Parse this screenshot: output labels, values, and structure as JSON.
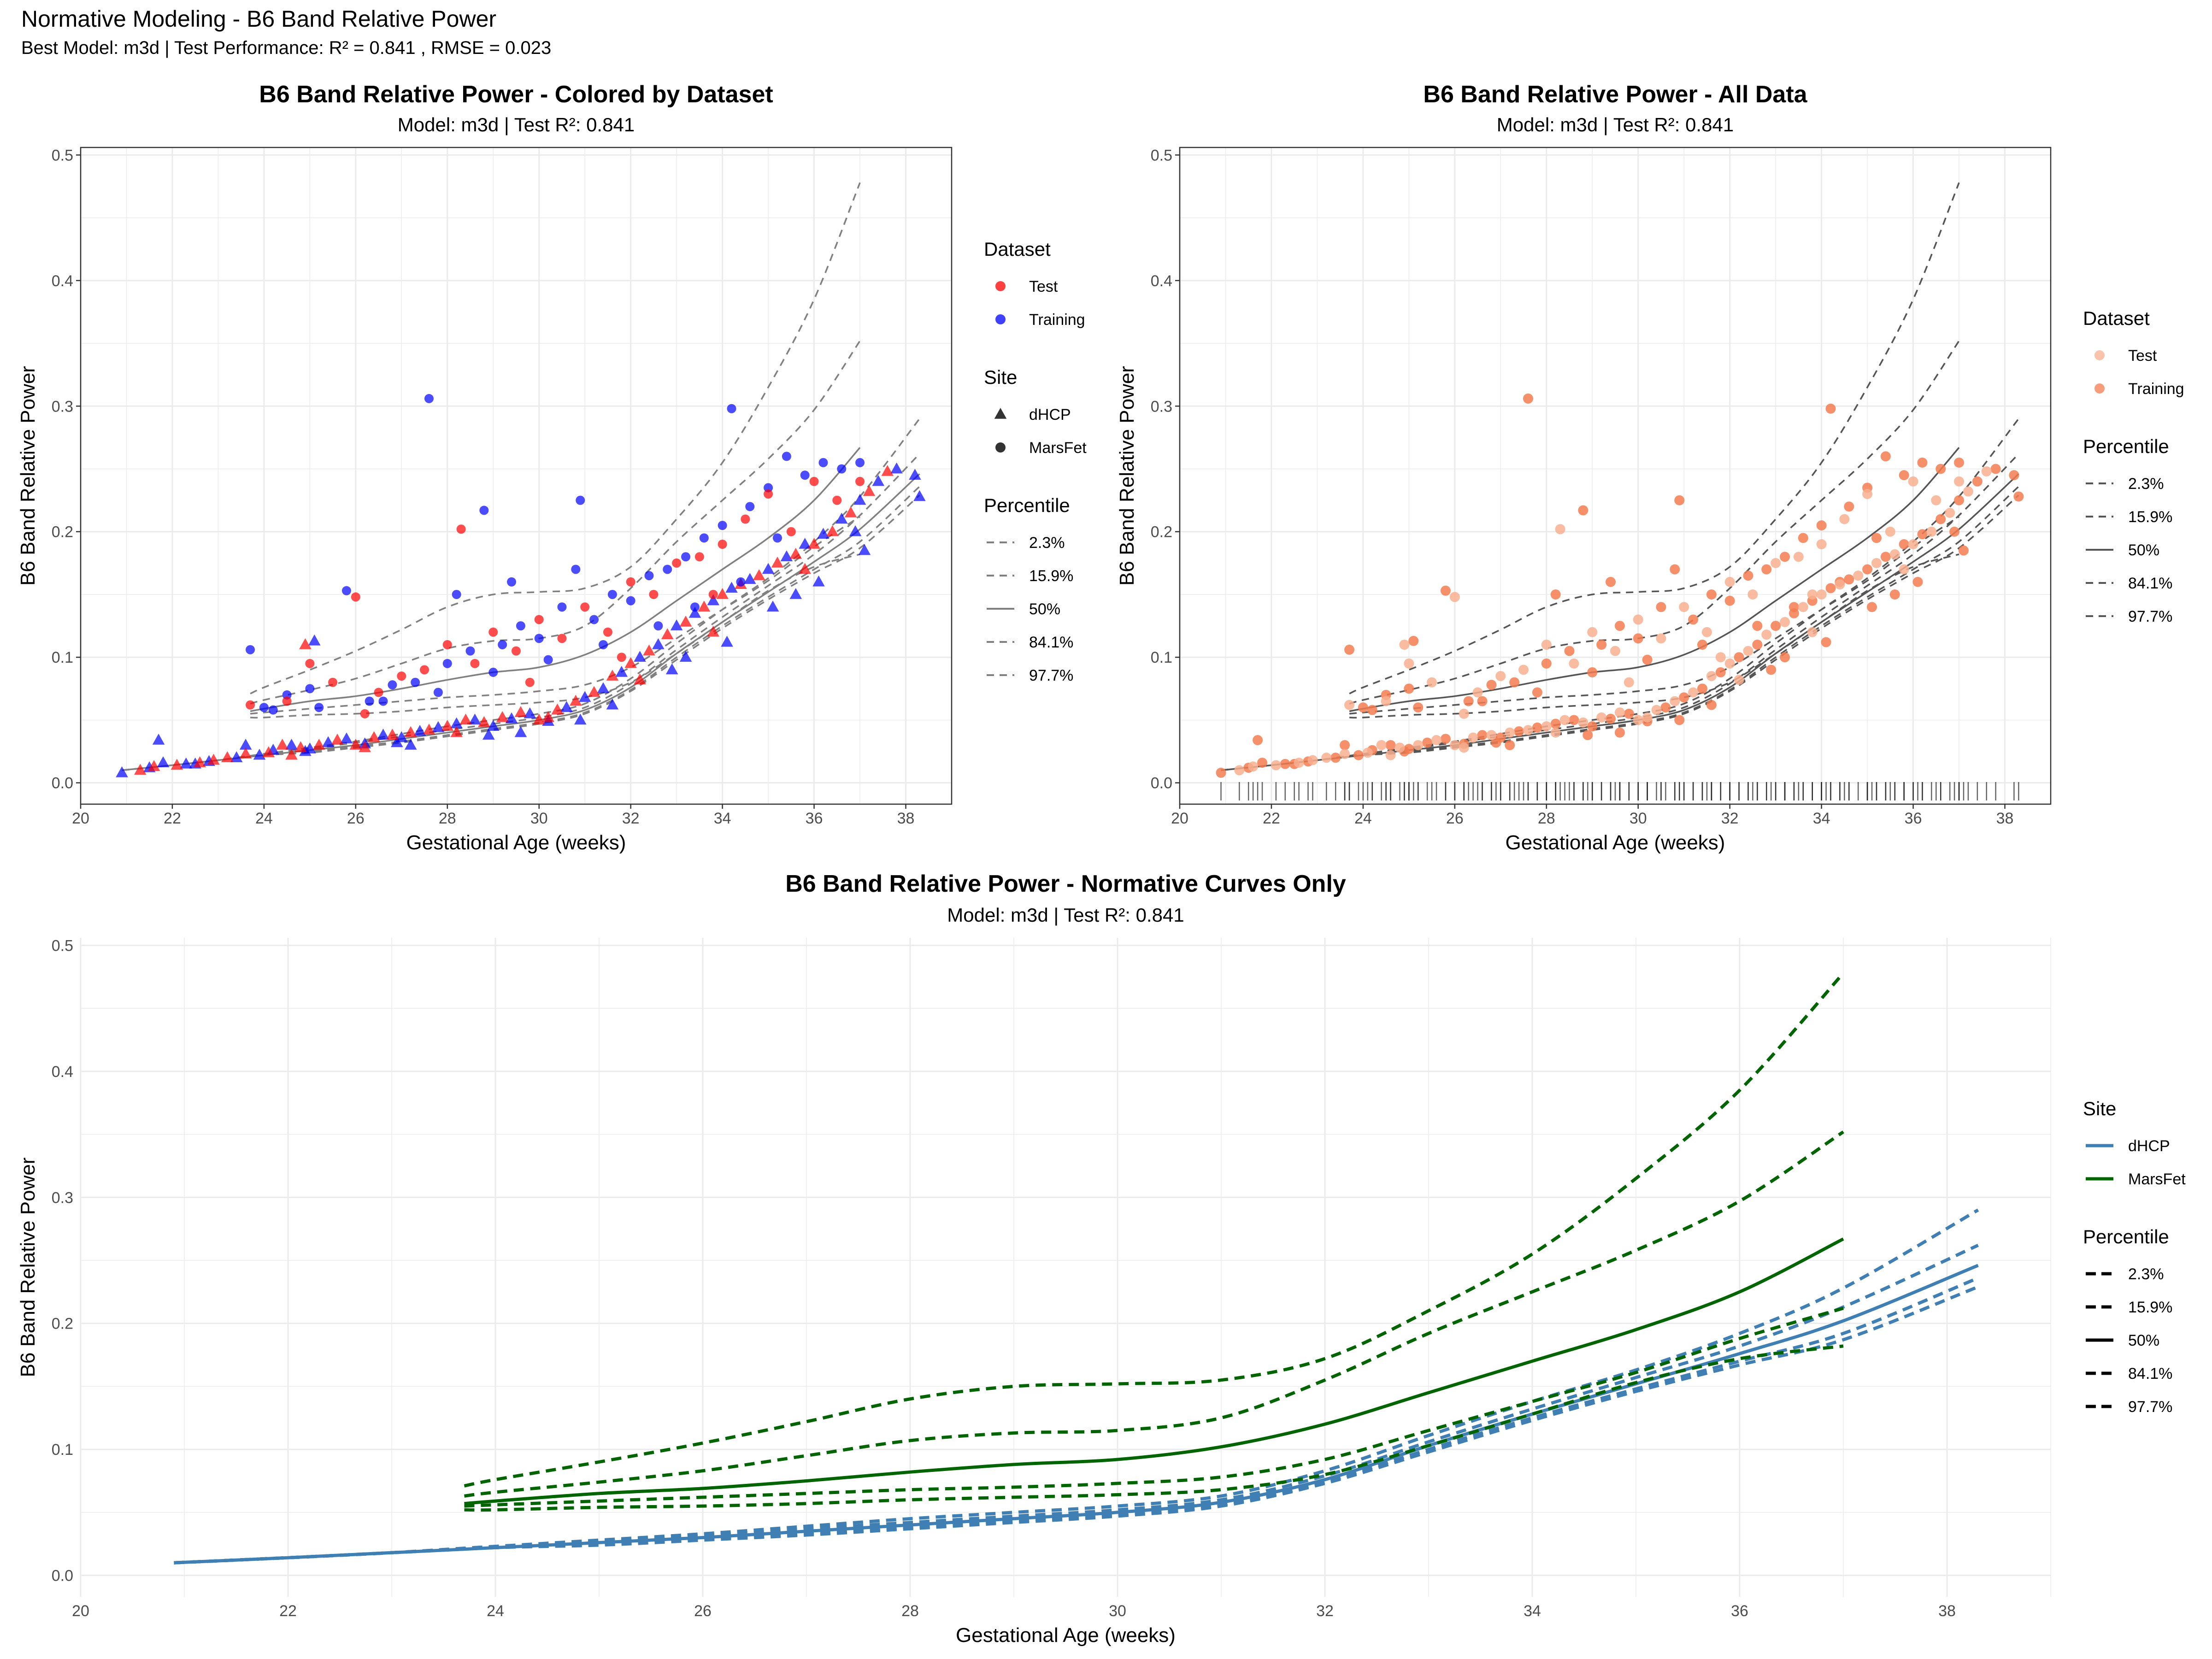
{
  "figure": {
    "title": "Normative Modeling - B6 Band Relative Power",
    "subtitle": "Best Model: m3d | Test Performance: R² = 0.841 , RMSE = 0.023"
  },
  "colors": {
    "test": "#ff0000",
    "training": "#0000ff",
    "all_test": "#f8b090",
    "all_training": "#f47c50",
    "dhcp": "#3f7fb3",
    "marsfet": "#006400",
    "grid": "#ebebeb",
    "curve_gray": "#808080",
    "curve_dark": "#555555"
  },
  "chart_data": [
    {
      "id": "colored",
      "type": "scatter",
      "title": "B6 Band Relative Power - Colored by Dataset",
      "subtitle": "Model: m3d | Test R²: 0.841",
      "xlabel": "Gestational Age (weeks)",
      "ylabel": "B6 Band Relative Power",
      "xlim": [
        20,
        39
      ],
      "ylim": [
        0,
        0.5
      ],
      "xticks": [
        20,
        22,
        24,
        26,
        28,
        30,
        32,
        34,
        36,
        38
      ],
      "yticks": [
        0.0,
        0.1,
        0.2,
        0.3,
        0.4,
        0.5
      ],
      "grid": true,
      "legend": {
        "position": "right",
        "groups": [
          {
            "title": "Dataset",
            "kind": "point",
            "items": [
              {
                "label": "Test",
                "color": "#ff0000"
              },
              {
                "label": "Training",
                "color": "#0000ff"
              }
            ]
          },
          {
            "title": "Site",
            "kind": "shape",
            "items": [
              {
                "label": "dHCP",
                "shape": "triangle"
              },
              {
                "label": "MarsFet",
                "shape": "circle"
              }
            ]
          },
          {
            "title": "Percentile",
            "kind": "line",
            "items": [
              {
                "label": "2.3%",
                "dash": true
              },
              {
                "label": "15.9%",
                "dash": true
              },
              {
                "label": "50%",
                "dash": false
              },
              {
                "label": "84.1%",
                "dash": true
              },
              {
                "label": "97.7%",
                "dash": true
              }
            ]
          }
        ]
      }
    },
    {
      "id": "all",
      "type": "scatter",
      "title": "B6 Band Relative Power - All Data",
      "subtitle": "Model: m3d | Test R²: 0.841",
      "xlabel": "Gestational Age (weeks)",
      "ylabel": "B6 Band Relative Power",
      "xlim": [
        20,
        39
      ],
      "ylim": [
        0,
        0.5
      ],
      "xticks": [
        20,
        22,
        24,
        26,
        28,
        30,
        32,
        34,
        36,
        38
      ],
      "yticks": [
        0.0,
        0.1,
        0.2,
        0.3,
        0.4,
        0.5
      ],
      "grid": true,
      "rug": true,
      "legend": {
        "position": "right",
        "groups": [
          {
            "title": "Dataset",
            "kind": "point",
            "items": [
              {
                "label": "Test",
                "color": "#f8b090"
              },
              {
                "label": "Training",
                "color": "#f47c50"
              }
            ]
          },
          {
            "title": "Percentile",
            "kind": "line",
            "items": [
              {
                "label": "2.3%",
                "dash": true
              },
              {
                "label": "15.9%",
                "dash": true
              },
              {
                "label": "50%",
                "dash": false
              },
              {
                "label": "84.1%",
                "dash": true
              },
              {
                "label": "97.7%",
                "dash": true
              }
            ]
          }
        ]
      }
    },
    {
      "id": "curves",
      "type": "line",
      "title": "B6 Band Relative Power - Normative Curves Only",
      "subtitle": "Model: m3d | Test R²: 0.841",
      "xlabel": "Gestational Age (weeks)",
      "ylabel": "B6 Band Relative Power",
      "xlim": [
        20,
        39
      ],
      "ylim": [
        0,
        0.5
      ],
      "xticks": [
        20,
        22,
        24,
        26,
        28,
        30,
        32,
        34,
        36,
        38
      ],
      "yticks": [
        0.0,
        0.1,
        0.2,
        0.3,
        0.4,
        0.5
      ],
      "grid": true,
      "legend": {
        "position": "right",
        "groups": [
          {
            "title": "Site",
            "kind": "line_color",
            "items": [
              {
                "label": "dHCP",
                "color": "#3f7fb3"
              },
              {
                "label": "MarsFet",
                "color": "#006400"
              }
            ]
          },
          {
            "title": "Percentile",
            "kind": "line",
            "items": [
              {
                "label": "2.3%",
                "dash": true
              },
              {
                "label": "15.9%",
                "dash": true
              },
              {
                "label": "50%",
                "dash": false
              },
              {
                "label": "84.1%",
                "dash": true
              },
              {
                "label": "97.7%",
                "dash": true
              }
            ]
          }
        ]
      }
    }
  ],
  "curves": {
    "marsfet": {
      "x": [
        23.7,
        24,
        25,
        26,
        27,
        28,
        29,
        30,
        31,
        32,
        33,
        34,
        35,
        36,
        37
      ],
      "p2": [
        0.052,
        0.052,
        0.054,
        0.055,
        0.057,
        0.06,
        0.062,
        0.064,
        0.068,
        0.08,
        0.103,
        0.128,
        0.153,
        0.172,
        0.182
      ],
      "p16": [
        0.055,
        0.056,
        0.059,
        0.062,
        0.065,
        0.068,
        0.07,
        0.073,
        0.078,
        0.092,
        0.115,
        0.138,
        0.161,
        0.188,
        0.212
      ],
      "p50": [
        0.057,
        0.059,
        0.065,
        0.069,
        0.075,
        0.082,
        0.088,
        0.092,
        0.102,
        0.12,
        0.145,
        0.17,
        0.195,
        0.225,
        0.267
      ],
      "p84": [
        0.063,
        0.066,
        0.074,
        0.083,
        0.095,
        0.107,
        0.113,
        0.115,
        0.125,
        0.155,
        0.192,
        0.225,
        0.258,
        0.297,
        0.352
      ],
      "p98": [
        0.071,
        0.076,
        0.09,
        0.105,
        0.122,
        0.14,
        0.15,
        0.152,
        0.155,
        0.172,
        0.21,
        0.255,
        0.315,
        0.385,
        0.478
      ]
    },
    "dhcp": {
      "x": [
        20.9,
        22,
        23,
        24,
        25,
        26,
        27,
        28,
        29,
        30,
        31,
        32,
        33,
        34,
        35,
        36,
        37,
        38.3
      ],
      "p2": [
        0.01,
        0.014,
        0.018,
        0.022,
        0.024,
        0.028,
        0.032,
        0.037,
        0.042,
        0.047,
        0.055,
        0.073,
        0.098,
        0.123,
        0.146,
        0.167,
        0.187,
        0.229
      ],
      "p16": [
        0.01,
        0.014,
        0.018,
        0.022,
        0.025,
        0.029,
        0.033,
        0.038,
        0.043,
        0.048,
        0.056,
        0.074,
        0.1,
        0.125,
        0.148,
        0.17,
        0.192,
        0.236
      ],
      "p50": [
        0.01,
        0.014,
        0.018,
        0.022,
        0.026,
        0.03,
        0.035,
        0.04,
        0.045,
        0.05,
        0.058,
        0.076,
        0.103,
        0.128,
        0.152,
        0.176,
        0.202,
        0.246
      ],
      "p84": [
        0.01,
        0.014,
        0.018,
        0.023,
        0.027,
        0.032,
        0.037,
        0.042,
        0.047,
        0.052,
        0.06,
        0.079,
        0.106,
        0.132,
        0.157,
        0.182,
        0.213,
        0.262
      ],
      "p98": [
        0.01,
        0.014,
        0.018,
        0.023,
        0.028,
        0.033,
        0.039,
        0.045,
        0.05,
        0.055,
        0.063,
        0.083,
        0.111,
        0.138,
        0.163,
        0.192,
        0.228,
        0.29
      ]
    }
  },
  "points": {
    "test_dhcp": [
      [
        21.3,
        0.01
      ],
      [
        21.6,
        0.013
      ],
      [
        22.1,
        0.014
      ],
      [
        22.6,
        0.016
      ],
      [
        23.2,
        0.02
      ],
      [
        23.6,
        0.023
      ],
      [
        24.1,
        0.024
      ],
      [
        24.4,
        0.03
      ],
      [
        24.8,
        0.028
      ],
      [
        25.2,
        0.03
      ],
      [
        25.6,
        0.034
      ],
      [
        26.0,
        0.03
      ],
      [
        26.4,
        0.036
      ],
      [
        26.8,
        0.038
      ],
      [
        27.2,
        0.04
      ],
      [
        27.6,
        0.042
      ],
      [
        28.0,
        0.045
      ],
      [
        28.4,
        0.05
      ],
      [
        28.8,
        0.048
      ],
      [
        29.2,
        0.052
      ],
      [
        29.6,
        0.056
      ],
      [
        30.0,
        0.05
      ],
      [
        30.4,
        0.058
      ],
      [
        30.8,
        0.065
      ],
      [
        31.2,
        0.072
      ],
      [
        31.6,
        0.085
      ],
      [
        32.0,
        0.095
      ],
      [
        32.4,
        0.105
      ],
      [
        32.8,
        0.118
      ],
      [
        33.2,
        0.128
      ],
      [
        33.6,
        0.14
      ],
      [
        34.0,
        0.15
      ],
      [
        34.4,
        0.158
      ],
      [
        34.8,
        0.165
      ],
      [
        35.2,
        0.175
      ],
      [
        35.6,
        0.182
      ],
      [
        36.0,
        0.19
      ],
      [
        36.4,
        0.2
      ],
      [
        36.8,
        0.215
      ],
      [
        37.2,
        0.232
      ],
      [
        37.6,
        0.248
      ],
      [
        24.9,
        0.11
      ],
      [
        22.9,
        0.018
      ],
      [
        24.6,
        0.022
      ],
      [
        26.2,
        0.028
      ],
      [
        28.2,
        0.04
      ],
      [
        30.2,
        0.052
      ],
      [
        32.2,
        0.082
      ],
      [
        33.8,
        0.12
      ],
      [
        35.8,
        0.17
      ]
    ],
    "train_dhcp": [
      [
        20.9,
        0.008
      ],
      [
        21.5,
        0.012
      ],
      [
        21.8,
        0.016
      ],
      [
        22.3,
        0.015
      ],
      [
        22.8,
        0.017
      ],
      [
        23.4,
        0.02
      ],
      [
        23.9,
        0.022
      ],
      [
        24.2,
        0.026
      ],
      [
        24.6,
        0.03
      ],
      [
        25.0,
        0.027
      ],
      [
        25.4,
        0.032
      ],
      [
        25.8,
        0.035
      ],
      [
        26.2,
        0.031
      ],
      [
        26.6,
        0.038
      ],
      [
        27.0,
        0.036
      ],
      [
        27.4,
        0.041
      ],
      [
        27.8,
        0.044
      ],
      [
        28.2,
        0.047
      ],
      [
        28.6,
        0.05
      ],
      [
        29.0,
        0.045
      ],
      [
        29.4,
        0.051
      ],
      [
        29.8,
        0.055
      ],
      [
        30.2,
        0.049
      ],
      [
        30.6,
        0.06
      ],
      [
        31.0,
        0.068
      ],
      [
        31.4,
        0.075
      ],
      [
        31.8,
        0.088
      ],
      [
        32.2,
        0.1
      ],
      [
        32.6,
        0.11
      ],
      [
        33.0,
        0.125
      ],
      [
        33.4,
        0.135
      ],
      [
        33.8,
        0.145
      ],
      [
        34.2,
        0.155
      ],
      [
        34.6,
        0.162
      ],
      [
        35.0,
        0.17
      ],
      [
        35.4,
        0.18
      ],
      [
        35.8,
        0.19
      ],
      [
        36.2,
        0.198
      ],
      [
        36.6,
        0.21
      ],
      [
        37.0,
        0.225
      ],
      [
        37.4,
        0.24
      ],
      [
        37.8,
        0.25
      ],
      [
        38.2,
        0.245
      ],
      [
        38.3,
        0.228
      ],
      [
        21.7,
        0.034
      ],
      [
        25.1,
        0.113
      ],
      [
        23.6,
        0.03
      ],
      [
        27.2,
        0.03
      ],
      [
        29.6,
        0.04
      ],
      [
        31.6,
        0.062
      ],
      [
        32.9,
        0.09
      ],
      [
        34.1,
        0.112
      ],
      [
        35.1,
        0.14
      ],
      [
        36.1,
        0.16
      ],
      [
        37.1,
        0.185
      ],
      [
        36.9,
        0.2
      ],
      [
        35.6,
        0.15
      ],
      [
        33.2,
        0.1
      ],
      [
        30.9,
        0.05
      ],
      [
        28.9,
        0.038
      ],
      [
        26.9,
        0.032
      ],
      [
        24.9,
        0.025
      ],
      [
        22.5,
        0.015
      ]
    ],
    "test_mars": [
      [
        23.7,
        0.062
      ],
      [
        24.5,
        0.065
      ],
      [
        25.0,
        0.095
      ],
      [
        25.5,
        0.08
      ],
      [
        26.0,
        0.148
      ],
      [
        26.5,
        0.072
      ],
      [
        27.0,
        0.085
      ],
      [
        27.5,
        0.09
      ],
      [
        28.0,
        0.11
      ],
      [
        28.3,
        0.202
      ],
      [
        28.6,
        0.095
      ],
      [
        29.0,
        0.12
      ],
      [
        29.5,
        0.105
      ],
      [
        30.0,
        0.13
      ],
      [
        30.5,
        0.115
      ],
      [
        31.0,
        0.14
      ],
      [
        31.5,
        0.12
      ],
      [
        32.0,
        0.16
      ],
      [
        32.5,
        0.15
      ],
      [
        33.0,
        0.175
      ],
      [
        33.5,
        0.18
      ],
      [
        34.0,
        0.19
      ],
      [
        34.5,
        0.21
      ],
      [
        35.0,
        0.23
      ],
      [
        35.5,
        0.2
      ],
      [
        36.0,
        0.24
      ],
      [
        36.5,
        0.225
      ],
      [
        37.0,
        0.24
      ],
      [
        29.8,
        0.08
      ],
      [
        31.8,
        0.1
      ],
      [
        33.8,
        0.15
      ],
      [
        26.2,
        0.055
      ]
    ],
    "train_mars": [
      [
        23.7,
        0.106
      ],
      [
        24.0,
        0.06
      ],
      [
        24.5,
        0.07
      ],
      [
        25.0,
        0.075
      ],
      [
        25.8,
        0.153
      ],
      [
        26.3,
        0.065
      ],
      [
        26.8,
        0.078
      ],
      [
        27.3,
        0.08
      ],
      [
        27.6,
        0.306
      ],
      [
        28.0,
        0.095
      ],
      [
        28.5,
        0.105
      ],
      [
        28.8,
        0.217
      ],
      [
        29.2,
        0.11
      ],
      [
        29.6,
        0.125
      ],
      [
        30.0,
        0.115
      ],
      [
        30.5,
        0.14
      ],
      [
        30.9,
        0.225
      ],
      [
        31.2,
        0.13
      ],
      [
        31.6,
        0.15
      ],
      [
        32.0,
        0.145
      ],
      [
        32.4,
        0.165
      ],
      [
        32.8,
        0.17
      ],
      [
        33.2,
        0.18
      ],
      [
        33.6,
        0.195
      ],
      [
        34.0,
        0.205
      ],
      [
        34.2,
        0.298
      ],
      [
        34.6,
        0.22
      ],
      [
        35.0,
        0.235
      ],
      [
        35.4,
        0.26
      ],
      [
        35.8,
        0.245
      ],
      [
        36.2,
        0.255
      ],
      [
        36.6,
        0.25
      ],
      [
        37.0,
        0.255
      ],
      [
        29.0,
        0.088
      ],
      [
        30.2,
        0.098
      ],
      [
        31.4,
        0.11
      ],
      [
        32.6,
        0.125
      ],
      [
        33.4,
        0.14
      ],
      [
        34.4,
        0.16
      ],
      [
        35.2,
        0.195
      ],
      [
        27.8,
        0.072
      ],
      [
        26.6,
        0.065
      ],
      [
        25.2,
        0.06
      ],
      [
        24.2,
        0.058
      ],
      [
        28.2,
        0.15
      ],
      [
        29.4,
        0.16
      ],
      [
        30.8,
        0.17
      ]
    ]
  }
}
